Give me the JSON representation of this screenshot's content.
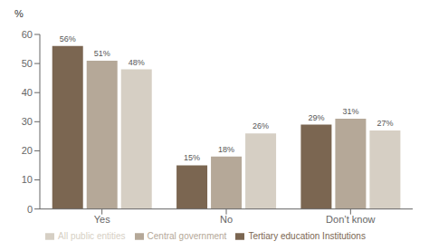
{
  "chart_data": {
    "type": "bar",
    "ylabel": "%",
    "categories": [
      "Yes",
      "No",
      "Don’t know"
    ],
    "series": [
      {
        "name": "Tertiary education Institutions",
        "color": "#7b6651",
        "values": [
          56,
          15,
          29
        ],
        "value_labels": [
          "56%",
          "15%",
          "29%"
        ]
      },
      {
        "name": "Central government",
        "color": "#b5a898",
        "values": [
          51,
          18,
          31
        ],
        "value_labels": [
          "51%",
          "18%",
          "31%"
        ]
      },
      {
        "name": "All public entities",
        "color": "#d6cfc4",
        "values": [
          48,
          26,
          27
        ],
        "value_labels": [
          "48%",
          "26%",
          "27%"
        ]
      }
    ],
    "ylim": [
      0,
      60
    ],
    "yticks": [
      0,
      10,
      20,
      30,
      40,
      50,
      60
    ],
    "grid": false,
    "legend": "bottom",
    "data_labels": true
  }
}
